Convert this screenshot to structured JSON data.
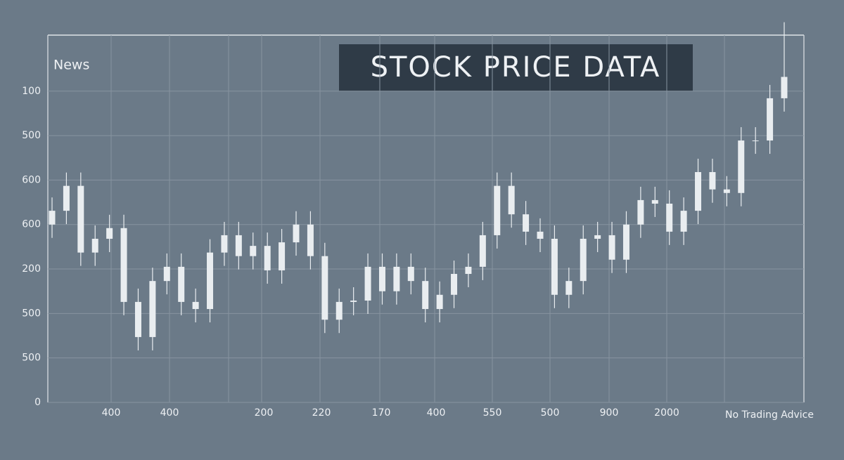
{
  "chart_data": {
    "type": "candlestick",
    "title": "STOCK PRICE DATA",
    "label_left": "News",
    "footnote": "No Trading Advice",
    "color": "#e9edf0",
    "grid": true,
    "ylim": [
      0,
      826
    ],
    "yticks": [
      0,
      {
        "value": 100,
        "label": "500"
      },
      {
        "value": 200,
        "label": "500"
      },
      {
        "value": 300,
        "label": "200"
      },
      {
        "value": 400,
        "label": "600"
      },
      {
        "value": 500,
        "label": "600"
      },
      {
        "value": 600,
        "label": "500"
      },
      {
        "value": 700,
        "label": "100"
      }
    ],
    "xtick_labels": [
      "400",
      "400",
      "200",
      "220",
      "170",
      "400",
      "550",
      "500",
      "900",
      "2000"
    ],
    "open": [
      400,
      431,
      487,
      337,
      368,
      392,
      226,
      147,
      273,
      305,
      226,
      210,
      337,
      376,
      329,
      352,
      297,
      360,
      400,
      329,
      186,
      226,
      229,
      305,
      250,
      305,
      273,
      210,
      242,
      289,
      305,
      376,
      487,
      423,
      384,
      368,
      242,
      273,
      368,
      376,
      321,
      400,
      455,
      447,
      384,
      431,
      518,
      479,
      471,
      589,
      589,
      684
    ],
    "close": [
      431,
      487,
      337,
      368,
      392,
      226,
      147,
      273,
      305,
      226,
      210,
      337,
      376,
      329,
      352,
      297,
      360,
      400,
      329,
      186,
      226,
      229,
      305,
      250,
      305,
      273,
      210,
      242,
      289,
      305,
      376,
      487,
      423,
      384,
      368,
      242,
      273,
      368,
      376,
      321,
      400,
      455,
      447,
      384,
      431,
      518,
      479,
      471,
      589,
      589,
      684,
      732
    ],
    "high": [
      461,
      517,
      517,
      398,
      422,
      422,
      256,
      303,
      335,
      335,
      256,
      367,
      406,
      406,
      382,
      382,
      390,
      430,
      430,
      359,
      256,
      259,
      335,
      335,
      335,
      335,
      303,
      272,
      319,
      335,
      406,
      517,
      517,
      453,
      414,
      398,
      303,
      398,
      406,
      406,
      430,
      485,
      485,
      477,
      461,
      548,
      548,
      509,
      619,
      619,
      714,
      855
    ],
    "low": [
      370,
      401,
      307,
      307,
      338,
      196,
      117,
      117,
      243,
      196,
      180,
      180,
      307,
      299,
      299,
      267,
      267,
      330,
      299,
      156,
      156,
      196,
      199,
      220,
      220,
      243,
      180,
      180,
      212,
      259,
      275,
      346,
      393,
      354,
      338,
      212,
      212,
      243,
      338,
      291,
      291,
      370,
      417,
      354,
      354,
      401,
      449,
      441,
      441,
      559,
      559,
      654
    ]
  }
}
